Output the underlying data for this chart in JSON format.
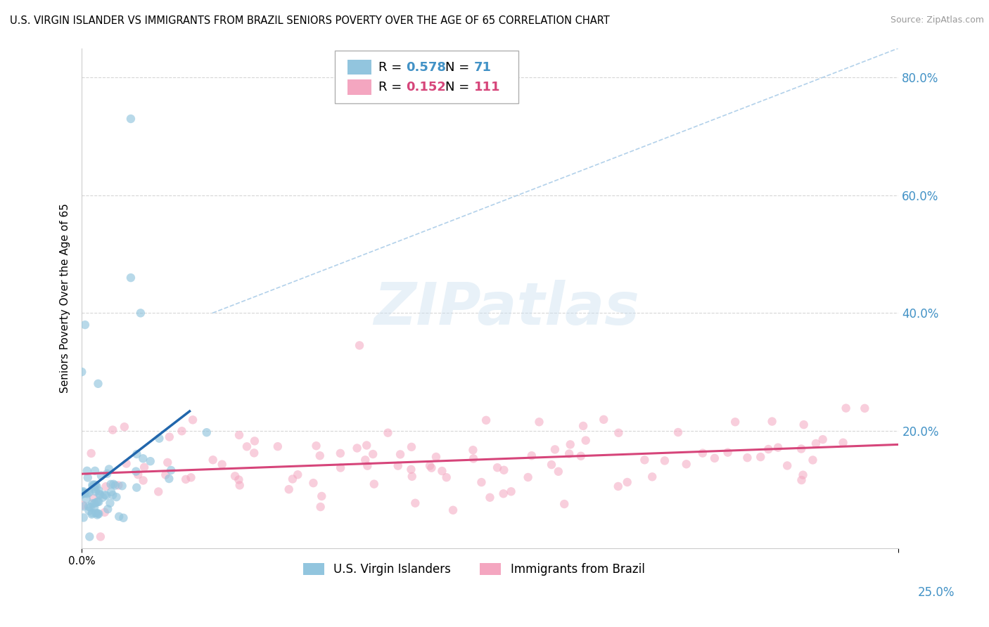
{
  "title": "U.S. VIRGIN ISLANDER VS IMMIGRANTS FROM BRAZIL SENIORS POVERTY OVER THE AGE OF 65 CORRELATION CHART",
  "source": "Source: ZipAtlas.com",
  "ylabel": "Seniors Poverty Over the Age of 65",
  "xlim": [
    0.0,
    0.25
  ],
  "ylim": [
    0.0,
    0.85
  ],
  "ytick_positions": [
    0.2,
    0.4,
    0.6,
    0.8
  ],
  "ytick_labels": [
    "20.0%",
    "40.0%",
    "60.0%",
    "80.0%"
  ],
  "xtick_labels": [
    "0.0%",
    "25.0%"
  ],
  "legend_r1_val": "0.578",
  "legend_n1_val": "71",
  "legend_r2_val": "0.152",
  "legend_n2_val": "111",
  "color_blue": "#92c5de",
  "color_pink": "#f4a6c0",
  "color_blue_line": "#2166ac",
  "color_pink_line": "#d6457a",
  "color_tick_label": "#4292c6",
  "color_grid": "#cccccc",
  "color_diag": "#aacce8",
  "group1_label": "U.S. Virgin Islanders",
  "group2_label": "Immigrants from Brazil",
  "background_color": "#ffffff",
  "title_fontsize": 10.5,
  "source_fontsize": 9,
  "watermark_text": "ZIPatlas"
}
